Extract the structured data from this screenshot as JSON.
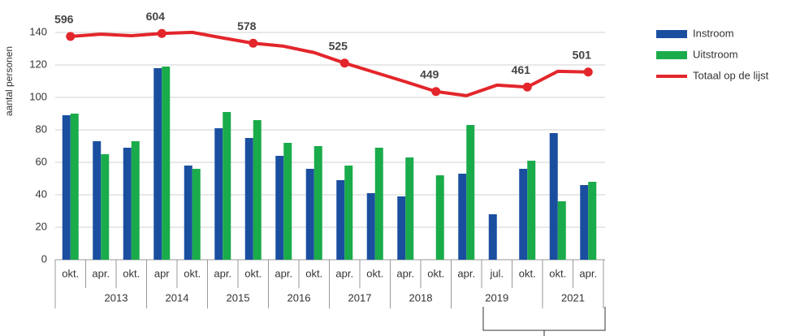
{
  "chart_data": {
    "type": "bar",
    "y_label": "aantal personen",
    "categories": [
      "okt.",
      "apr.",
      "okt.",
      "apr",
      "okt.",
      "apr.",
      "okt.",
      "apr.",
      "okt.",
      "apr.",
      "okt.",
      "apr.",
      "okt.",
      "apr.",
      "jul.",
      "okt.",
      "okt.",
      "apr."
    ],
    "groups": [
      {
        "label": "2013",
        "from": 1,
        "to": 2
      },
      {
        "label": "2014",
        "from": 3,
        "to": 4
      },
      {
        "label": "2015",
        "from": 5,
        "to": 6
      },
      {
        "label": "2016",
        "from": 7,
        "to": 8
      },
      {
        "label": "2017",
        "from": 9,
        "to": 10
      },
      {
        "label": "2018",
        "from": 11,
        "to": 12
      },
      {
        "label": "2019",
        "from": 13,
        "to": 15
      },
      {
        "label": "2021",
        "from": 16,
        "to": 17
      }
    ],
    "series": [
      {
        "name": "Instroom",
        "type": "bar",
        "color": "#1a4fa0",
        "values": [
          89,
          73,
          69,
          118,
          58,
          81,
          75,
          64,
          56,
          49,
          41,
          39,
          null,
          53,
          28,
          56,
          78,
          46
        ]
      },
      {
        "name": "Uitstroom",
        "type": "bar",
        "color": "#1aab4b",
        "values": [
          90,
          65,
          73,
          119,
          56,
          91,
          86,
          72,
          70,
          58,
          69,
          63,
          52,
          83,
          null,
          61,
          36,
          48
        ]
      },
      {
        "name": "Totaal op de lijst",
        "type": "line",
        "axis": "y2",
        "color": "#e3262b",
        "values": [
          596,
          602,
          598,
          604,
          607,
          592,
          578,
          570,
          553,
          525,
          500,
          475,
          449,
          438,
          466,
          461,
          503,
          501
        ],
        "value_labels": [
          "596",
          null,
          null,
          "604",
          null,
          null,
          "578",
          null,
          null,
          "525",
          null,
          null,
          "449",
          null,
          null,
          "461",
          null,
          "501"
        ]
      }
    ],
    "ylim": [
      0,
      150
    ],
    "yticks": [
      0,
      20,
      40,
      60,
      80,
      100,
      120,
      140
    ],
    "y2lim": [
      0,
      650
    ],
    "grid": true,
    "legend": "right"
  }
}
